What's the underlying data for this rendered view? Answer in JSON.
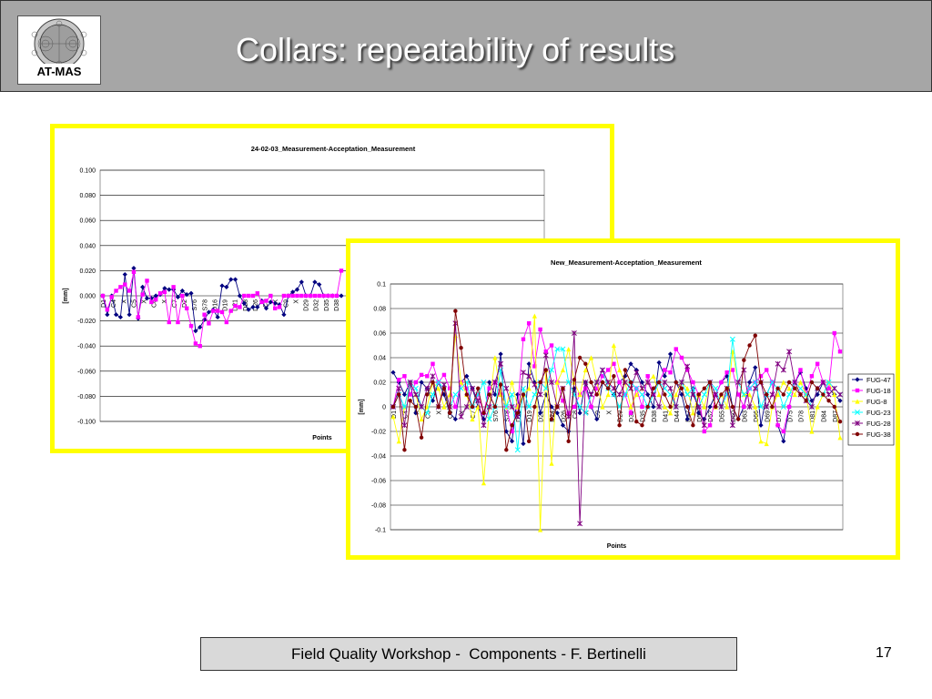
{
  "slide": {
    "title": "Collars: repeatability of results",
    "logo_text": "AT-MAS",
    "footer": "Field Quality Workshop -  Components - F. Bertinelli",
    "page_number": "17",
    "colors": {
      "header_bg": "#a6a6a6",
      "frame_border": "#ffff00",
      "footer_bg": "#d9d9d9"
    }
  },
  "chart_data": [
    {
      "type": "line",
      "title": "24-02-03_Measurement-Acceptation_Measurement",
      "xlabel": "Points",
      "ylabel": "[mm]",
      "ylim": [
        -0.1,
        0.1
      ],
      "yticks": [
        "0.100",
        "0.080",
        "0.060",
        "0.040",
        "0.020",
        "0.000",
        "-0.020",
        "-0.040",
        "-0.060",
        "-0.080",
        "-0.100"
      ],
      "xtick_labels": [
        "D1",
        "C4",
        "X",
        "C5",
        "X",
        "C6",
        "X",
        "C7",
        "D2",
        "S76",
        "S78",
        "D16",
        "D19",
        "D21",
        "D28",
        "D26",
        "C8",
        "X",
        "C9",
        "X",
        "D29",
        "D32",
        "D35",
        "D38"
      ],
      "grid": true,
      "legend": "hidden (covered by second chart)",
      "series": [
        {
          "color": "#000080",
          "marker": "diamond",
          "values": [
            0.0,
            -0.015,
            0.0,
            -0.015,
            -0.017,
            0.017,
            -0.015,
            0.022,
            -0.018,
            0.007,
            -0.002,
            -0.002,
            0.0,
            0.001,
            0.006,
            0.005,
            0.005,
            -0.001,
            0.004,
            0.001,
            0.002,
            -0.028,
            -0.025,
            -0.019,
            -0.013,
            -0.011,
            -0.017,
            0.008,
            0.007,
            0.013,
            0.013,
            0.0,
            -0.006,
            -0.011,
            -0.009,
            -0.009,
            -0.004,
            -0.01,
            -0.005,
            -0.006,
            -0.007,
            -0.015,
            0.0,
            0.003,
            0.005,
            0.011,
            0.0,
            0.0,
            0.011,
            0.009,
            0.0,
            0.0,
            0.0,
            0.0,
            0.0
          ]
        },
        {
          "color": "#ff00ff",
          "marker": "square",
          "values": [
            0.0,
            -0.011,
            -0.001,
            0.004,
            0.007,
            0.009,
            0.004,
            0.019,
            -0.017,
            0.001,
            0.012,
            -0.005,
            -0.003,
            0.002,
            0.003,
            -0.021,
            0.007,
            -0.021,
            0.0,
            -0.01,
            -0.024,
            -0.038,
            -0.04,
            -0.015,
            -0.022,
            -0.012,
            -0.012,
            -0.013,
            -0.021,
            -0.012,
            -0.008,
            -0.009,
            0.0,
            0.0,
            0.0,
            0.002,
            -0.005,
            -0.004,
            0.0,
            -0.01,
            -0.009,
            0.0,
            0.0,
            0.0,
            0.0,
            0.0,
            0.0,
            0.0,
            0.0,
            0.0,
            0.0,
            0.0,
            0.0,
            0.0,
            0.02
          ]
        }
      ]
    },
    {
      "type": "line",
      "title": "New_Measurement-Acceptation_Measurement",
      "xlabel": "Points",
      "ylabel": "[mm]",
      "ylim": [
        -0.1,
        0.1
      ],
      "yticks": [
        "0.1",
        "0.08",
        "0.06",
        "0.04",
        "0.02",
        "0",
        "-0.02",
        "-0.04",
        "-0.06",
        "-0.08",
        "-0.1"
      ],
      "xtick_labels": [
        "D1",
        "C4",
        "X",
        "C5",
        "X",
        "C6",
        "X",
        "C7",
        "X",
        "S76",
        "S78",
        "D16",
        "D19",
        "D21",
        "D24",
        "D26",
        "C8",
        "X",
        "C9",
        "X",
        "D29",
        "D32",
        "D35",
        "D38",
        "D41",
        "D44",
        "D47",
        "D50",
        "D52",
        "D55",
        "D60",
        "D63",
        "D66",
        "D69",
        "D72",
        "D75",
        "D78",
        "D81",
        "D84",
        "D87"
      ],
      "grid": true,
      "legend": "right",
      "series": [
        {
          "name": "FUG-47",
          "color": "#000080",
          "marker": "diamond",
          "values": [
            0.028,
            0.02,
            0.01,
            0.02,
            -0.005,
            0.02,
            0.015,
            0.005,
            0.02,
            0.01,
            -0.005,
            -0.01,
            0.02,
            0.025,
            0.015,
            0.0,
            -0.01,
            0.02,
            0.01,
            0.043,
            -0.02,
            -0.028,
            0.01,
            -0.03,
            0.035,
            0.02,
            -0.005,
            0.01,
            0.0,
            -0.005,
            -0.015,
            -0.02,
            0.015,
            -0.005,
            0.02,
            0.0,
            -0.01,
            0.02,
            0.015,
            0.01,
            0.02,
            0.025,
            0.035,
            0.03,
            0.02,
            0.01,
            0.0,
            0.036,
            0.025,
            0.043,
            0.02,
            0.01,
            -0.01,
            0.015,
            -0.005,
            -0.01,
            0.0,
            0.01,
            0.02,
            0.025,
            0.0,
            -0.01,
            0.0,
            0.02,
            0.032,
            -0.015,
            0.01,
            0.02,
            -0.015,
            -0.028,
            0.0,
            0.02,
            0.028,
            0.015,
            0.005,
            0.01,
            0.02,
            0.015,
            0.01,
            0.005
          ]
        },
        {
          "name": "FUG-18",
          "color": "#ff00ff",
          "marker": "square",
          "values": [
            0.0,
            0.022,
            0.025,
            0.01,
            0.02,
            0.026,
            0.025,
            0.035,
            0.02,
            0.026,
            0.015,
            0.0,
            0.02,
            0.015,
            0.0,
            0.01,
            -0.005,
            0.015,
            0.02,
            0.01,
            0.0,
            -0.02,
            0.0,
            0.055,
            0.068,
            0.033,
            0.063,
            0.045,
            0.05,
            0.02,
            0.005,
            -0.005,
            0.0,
            0.01,
            0.015,
            0.0,
            0.015,
            0.025,
            0.03,
            0.035,
            0.02,
            0.01,
            -0.005,
            0.015,
            0.0,
            0.025,
            0.01,
            0.02,
            0.03,
            0.028,
            0.047,
            0.04,
            0.03,
            0.02,
            0.01,
            -0.02,
            -0.015,
            0.01,
            0.02,
            0.028,
            0.03,
            0.01,
            0.0,
            0.015,
            0.02,
            0.025,
            0.03,
            0.02,
            -0.015,
            -0.02,
            0.0,
            0.02,
            0.03,
            0.01,
            0.025,
            0.035,
            0.02,
            0.015,
            0.06,
            0.045
          ]
        },
        {
          "name": "FUG-8",
          "color": "#ffff00",
          "marker": "triangle",
          "values": [
            -0.008,
            -0.028,
            0.0,
            0.02,
            0.01,
            -0.01,
            0.0,
            0.02,
            0.015,
            0.0,
            0.01,
            0.058,
            0.02,
            0.01,
            -0.01,
            0.0,
            -0.062,
            0.0,
            0.04,
            0.01,
            0.0,
            0.02,
            0.0,
            0.01,
            0.015,
            0.074,
            -0.1,
            0.03,
            -0.046,
            0.02,
            0.03,
            0.047,
            0.02,
            0.01,
            0.03,
            0.04,
            0.02,
            0.0,
            0.01,
            0.05,
            0.03,
            0.02,
            0.0,
            0.01,
            0.015,
            0.02,
            0.025,
            0.01,
            0.0,
            -0.005,
            0.01,
            0.02,
            0.015,
            -0.005,
            0.01,
            0.0,
            0.02,
            0.0,
            0.01,
            0.0,
            0.045,
            0.02,
            0.01,
            0.01,
            0.0,
            -0.028,
            -0.03,
            0.0,
            0.01,
            0.02,
            0.015,
            0.01,
            0.02,
            0.01,
            -0.02,
            0.0,
            0.01,
            0.02,
            0.01,
            -0.025
          ]
        },
        {
          "name": "FUG-23",
          "color": "#00ffff",
          "marker": "x",
          "values": [
            0.0,
            0.01,
            0.0,
            0.02,
            0.015,
            0.0,
            -0.005,
            0.01,
            0.02,
            0.015,
            0.0,
            0.01,
            0.015,
            0.02,
            0.0,
            0.01,
            0.02,
            -0.01,
            0.0,
            0.03,
            0.0,
            0.01,
            -0.035,
            0.015,
            0.0,
            0.01,
            0.02,
            0.015,
            0.03,
            0.047,
            0.047,
            0.02,
            0.01,
            0.0,
            -0.005,
            0.01,
            0.02,
            0.03,
            0.015,
            0.01,
            0.0,
            0.01,
            0.02,
            0.015,
            0.01,
            0.0,
            0.01,
            0.02,
            0.015,
            0.01,
            0.0,
            0.02,
            0.01,
            0.015,
            0.0,
            0.01,
            0.02,
            0.015,
            0.0,
            0.01,
            0.055,
            0.02,
            0.01,
            0.015,
            0.02,
            0.0,
            0.01,
            0.02,
            0.015,
            0.0,
            0.01,
            0.02,
            0.015,
            0.01,
            0.0,
            0.015,
            0.01,
            0.02,
            0.015,
            0.01
          ]
        },
        {
          "name": "FUG-28",
          "color": "#800080",
          "marker": "star",
          "values": [
            0.0,
            0.015,
            -0.015,
            0.02,
            0.01,
            0.0,
            0.015,
            0.025,
            0.0,
            0.018,
            0.0,
            0.068,
            -0.008,
            0.0,
            0.015,
            0.005,
            -0.015,
            0.0,
            0.02,
            0.035,
            0.015,
            0.0,
            -0.008,
            0.028,
            0.025,
            0.018,
            0.01,
            0.042,
            0.02,
            0.0,
            0.015,
            -0.008,
            0.06,
            -0.095,
            0.02,
            0.01,
            0.02,
            0.03,
            0.02,
            0.015,
            0.01,
            0.02,
            0.015,
            0.028,
            0.015,
            0.02,
            0.01,
            0.0,
            0.02,
            0.015,
            0.0,
            0.02,
            0.033,
            0.01,
            0.0,
            -0.015,
            0.02,
            0.01,
            0.0,
            0.015,
            -0.015,
            0.02,
            0.03,
            0.0,
            0.015,
            0.02,
            0.0,
            0.01,
            0.035,
            0.03,
            0.045,
            0.02,
            0.01,
            0.005,
            0.0,
            0.015,
            0.02,
            0.01,
            0.015,
            0.01
          ]
        },
        {
          "name": "FUG-38",
          "color": "#800000",
          "marker": "circle",
          "values": [
            0.0,
            0.01,
            -0.035,
            0.005,
            0.0,
            -0.025,
            0.01,
            0.02,
            0.0,
            0.015,
            -0.005,
            0.078,
            0.048,
            0.01,
            0.0,
            0.015,
            -0.005,
            0.01,
            0.0,
            0.018,
            -0.035,
            -0.015,
            -0.005,
            0.01,
            -0.028,
            0.0,
            0.02,
            0.03,
            -0.01,
            0.0,
            0.015,
            -0.028,
            0.022,
            0.04,
            0.035,
            0.02,
            0.01,
            0.02,
            0.015,
            0.025,
            -0.015,
            0.03,
            0.02,
            -0.012,
            -0.015,
            0.0,
            0.015,
            0.02,
            0.01,
            0.0,
            0.02,
            0.015,
            0.0,
            -0.015,
            0.01,
            0.015,
            0.02,
            0.0,
            0.01,
            0.015,
            0.0,
            -0.01,
            0.038,
            0.05,
            0.058,
            0.02,
            0.01,
            0.0,
            0.015,
            0.01,
            0.02,
            0.015,
            0.01,
            0.005,
            0.02,
            0.015,
            0.01,
            0.005,
            0.0,
            -0.012
          ]
        }
      ]
    }
  ]
}
